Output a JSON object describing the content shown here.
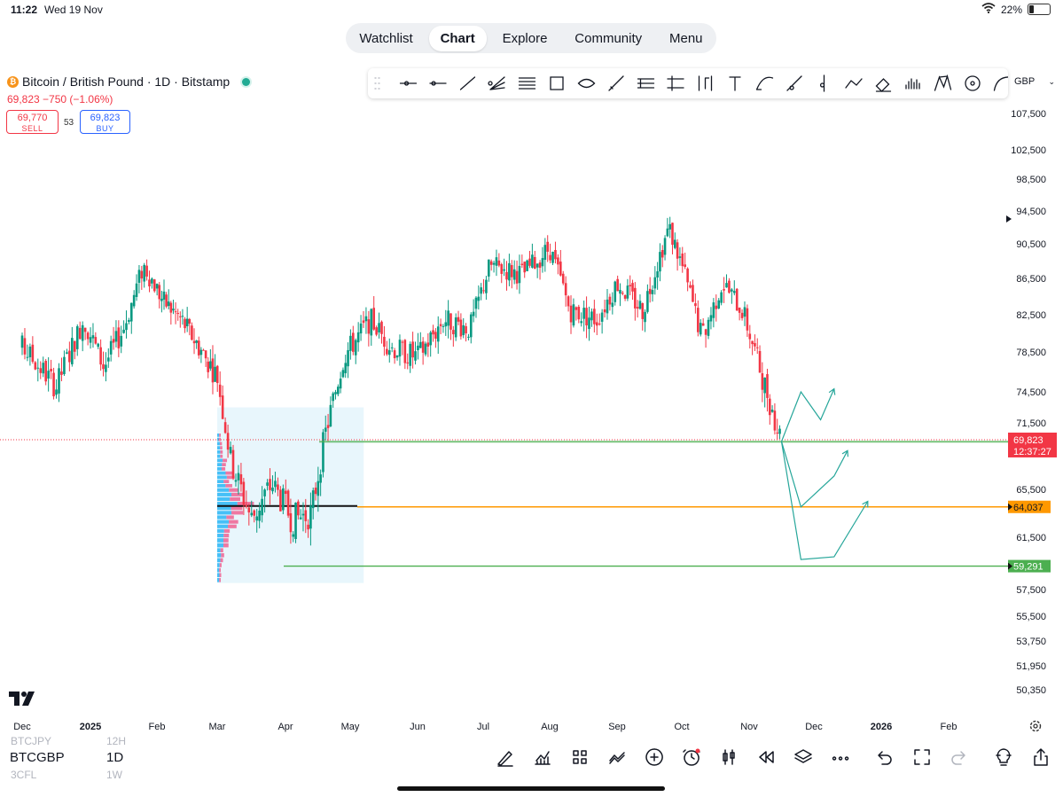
{
  "status": {
    "time": "11:22",
    "date": "Wed 19 Nov",
    "battery": "22%",
    "battery_level": 0.22
  },
  "nav": {
    "tabs": [
      "Watchlist",
      "Chart",
      "Explore",
      "Community",
      "Menu"
    ],
    "active": "Chart"
  },
  "symbol": {
    "title": "Bitcoin / British Pound · 1D · Bitstamp",
    "price_line": "69,823 −750 (−1.06%)"
  },
  "trade": {
    "sell_price": "69,770",
    "sell_label": "SELL",
    "spread": "53",
    "buy_price": "69,823",
    "buy_label": "BUY"
  },
  "toolbar": {
    "tools": [
      "grip-icon",
      "horizontal-ray-icon",
      "horizontal-line-icon",
      "trend-line-icon",
      "fib-fan-icon",
      "parallel-channel-icon",
      "rectangle-icon",
      "ellipse-icon",
      "brush-icon",
      "pitchfork-icon",
      "gann-icon",
      "long-position-icon",
      "text-icon",
      "curve-icon",
      "arrow-marker-icon",
      "vertical-line-icon",
      "path-icon",
      "eraser-icon",
      "volume-profile-icon",
      "xabcd-pattern-icon",
      "circle-icon",
      "arc-icon"
    ],
    "currency": "GBP"
  },
  "colors": {
    "up": "#089981",
    "down": "#f23645",
    "orange": "#ff9800",
    "green_line": "#4caf50",
    "profile_blue": "#29b6f6",
    "profile_pink": "#f06292"
  },
  "chart_data": {
    "type": "candlestick",
    "symbol": "BTCGBP",
    "interval": "1D",
    "y_ticks": [
      107500,
      102500,
      98500,
      94500,
      90500,
      86500,
      82500,
      78500,
      74500,
      71500,
      65500,
      61500,
      57500,
      55500,
      53750,
      51950,
      50350
    ],
    "y_tick_labels": [
      "107,500",
      "102,500",
      "98,500",
      "94,500",
      "90,500",
      "86,500",
      "82,500",
      "78,500",
      "74,500",
      "71,500",
      "65,500",
      "61,500",
      "57,500",
      "55,500",
      "53,750",
      "51,950",
      "50,350"
    ],
    "x_labels": [
      "Dec",
      "2025",
      "Feb",
      "Mar",
      "Apr",
      "May",
      "Jun",
      "Jul",
      "Aug",
      "Sep",
      "Oct",
      "Nov",
      "Dec",
      "2026",
      "Feb"
    ],
    "price_path": [
      {
        "m": 0,
        "v": 79000
      },
      {
        "m": 0.5,
        "v": 75000
      },
      {
        "m": 0.9,
        "v": 82000
      },
      {
        "m": 1.2,
        "v": 77000
      },
      {
        "m": 1.5,
        "v": 81000
      },
      {
        "m": 1.8,
        "v": 88000
      },
      {
        "m": 2.1,
        "v": 84000
      },
      {
        "m": 2.4,
        "v": 82000
      },
      {
        "m": 2.8,
        "v": 78000
      },
      {
        "m": 3.0,
        "v": 76000
      },
      {
        "m": 3.2,
        "v": 68000
      },
      {
        "m": 3.5,
        "v": 63000
      },
      {
        "m": 3.8,
        "v": 66000
      },
      {
        "m": 4.1,
        "v": 63000
      },
      {
        "m": 4.4,
        "v": 63500
      },
      {
        "m": 4.6,
        "v": 70000
      },
      {
        "m": 4.9,
        "v": 78000
      },
      {
        "m": 5.3,
        "v": 82000
      },
      {
        "m": 5.6,
        "v": 79000
      },
      {
        "m": 6.0,
        "v": 78000
      },
      {
        "m": 6.4,
        "v": 82000
      },
      {
        "m": 6.8,
        "v": 81000
      },
      {
        "m": 7.1,
        "v": 88000
      },
      {
        "m": 7.6,
        "v": 87000
      },
      {
        "m": 8.0,
        "v": 90000
      },
      {
        "m": 8.3,
        "v": 83000
      },
      {
        "m": 8.7,
        "v": 82000
      },
      {
        "m": 9.0,
        "v": 86000
      },
      {
        "m": 9.4,
        "v": 83000
      },
      {
        "m": 9.8,
        "v": 92500
      },
      {
        "m": 10.0,
        "v": 88000
      },
      {
        "m": 10.3,
        "v": 80000
      },
      {
        "m": 10.6,
        "v": 86000
      },
      {
        "m": 10.9,
        "v": 83000
      },
      {
        "m": 11.2,
        "v": 76000
      },
      {
        "m": 11.5,
        "v": 69823
      }
    ],
    "current_price": {
      "value": 69823,
      "label": "69,823",
      "countdown": "12:37:27"
    },
    "levels": [
      {
        "name": "support-upper",
        "value": 69800,
        "color": "#4caf50"
      },
      {
        "name": "support-mid",
        "value": 64037,
        "label": "64,037",
        "color": "#ff9800"
      },
      {
        "name": "support-low",
        "value": 59291,
        "label": "59,291",
        "color": "#4caf50"
      }
    ],
    "volume_profile": {
      "from_m": 3.0,
      "to_m": 5.2,
      "low": 58000,
      "high": 73000,
      "poc": 64037
    },
    "projections": [
      [
        [
          11.5,
          69823
        ],
        [
          11.8,
          74500
        ],
        [
          12.1,
          71800
        ],
        [
          12.3,
          74800
        ]
      ],
      [
        [
          11.5,
          69823
        ],
        [
          11.8,
          64037
        ],
        [
          12.3,
          66700
        ],
        [
          12.5,
          69000
        ]
      ],
      [
        [
          11.5,
          69823
        ],
        [
          11.8,
          59800
        ],
        [
          12.3,
          60000
        ],
        [
          12.8,
          64500
        ]
      ]
    ]
  },
  "bottom": {
    "ghost_above": "BTCJPY",
    "ghost_above_int": "12H",
    "symbol": "BTCGBP",
    "interval": "1D",
    "ghost_below": "3CFL",
    "ghost_below_int": "1W",
    "icons": [
      "pen-icon",
      "indicators-icon",
      "layouts-icon",
      "compare-icon",
      "add-icon",
      "alert-icon",
      "candles-icon",
      "replay-icon",
      "layers-icon",
      "more-icon",
      "undo-icon",
      "fullscreen-icon",
      "redo-icon",
      "idea-icon",
      "share-icon"
    ]
  }
}
